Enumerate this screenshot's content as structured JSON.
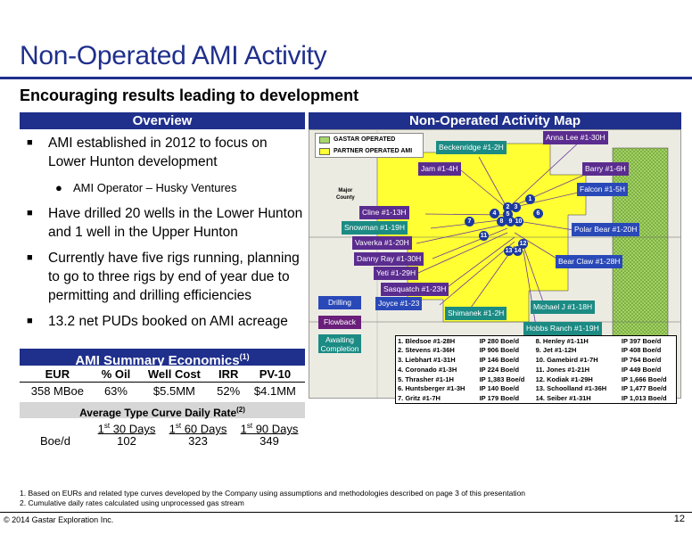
{
  "header": {
    "title": "Non-Operated AMI Activity",
    "subtitle": "Encouraging results leading to development"
  },
  "overview": {
    "heading": "Overview",
    "bullets": [
      "AMI established in 2012 to focus on Lower Hunton development",
      "Have drilled 20 wells in the Lower Hunton and 1 well in the Upper Hunton",
      "Currently have five rigs running, planning to go to three rigs by end of year due to permitting and drilling efficiencies",
      "13.2 net PUDs booked on AMI acreage"
    ],
    "sub_bullet": "AMI Operator – Husky Ventures"
  },
  "summary": {
    "heading": "AMI Summary Economics",
    "heading_sup": "(1)",
    "columns": [
      "EUR",
      "% Oil",
      "Well Cost",
      "IRR",
      "PV-10"
    ],
    "values": [
      "358 MBoe",
      "63%",
      "$5.5MM",
      "52%",
      "$4.1MM"
    ]
  },
  "type_curve": {
    "heading": "Average Type Curve Daily Rate",
    "heading_sup": "(2)",
    "col1_sup": "st",
    "col1_a": "1",
    "col1_b": " 30 Days",
    "col2_a": "1",
    "col2_b": " 60 Days",
    "col3_a": "1",
    "col3_b": " 90 Days",
    "row_label": "Boe/d",
    "values": [
      "102",
      "323",
      "349"
    ]
  },
  "map": {
    "heading": "Non-Operated Activity Map",
    "legend": [
      "GASTAR OPERATED",
      "PARTNER OPERATED AMI"
    ],
    "county_labels": [
      "Major",
      "County"
    ],
    "wells_top": [
      "Anna Lee #1-30H",
      "Beckenridge #1-2H",
      "Jam #1-4H",
      "Barry #1-6H",
      "Falcon #1-5H",
      "Cline #1-13H",
      "Snowman #1-19H",
      "Polar Bear #1-20H",
      "Vaverka #1-20H",
      "Danny Ray #1-30H",
      "Bear Claw #1-28H",
      "Yeti #1-29H",
      "Sasquatch #1-23H",
      "Joyce #1-23",
      "Michael J #1-18H",
      "Shimanek #1-2H",
      "Hobbs Ranch #1-19H"
    ],
    "status": [
      "Drilling",
      "Flowback",
      "Awaiting Completion"
    ],
    "numbers": [
      "1",
      "2",
      "3",
      "4",
      "5",
      "6",
      "7",
      "8",
      "9",
      "10",
      "11",
      "12",
      "13",
      "14"
    ]
  },
  "wells_table": [
    [
      "1. Bledsoe #1-28H",
      "IP 280 Boe/d",
      "8. Henley #1-11H",
      "IP 397 Boe/d"
    ],
    [
      "2. Stevens #1-36H",
      "IP 906 Boe/d",
      "9. Jet #1-12H",
      "IP 408 Boe/d"
    ],
    [
      "3. Liebhart #1-31H",
      "IP 146 Boe/d",
      "10. Gamebird #1-7H",
      "IP 764 Boe/d"
    ],
    [
      "4. Coronado #1-3H",
      "IP 224 Boe/d",
      "11. Jones #1-21H",
      "IP 449 Boe/d"
    ],
    [
      "5. Thrasher #1-1H",
      "IP 1,383 Boe/d",
      "12. Kodiak #1-29H",
      "IP 1,666 Boe/d"
    ],
    [
      "6. Huntsberger #1-3H",
      "IP 140 Boe/d",
      "13. Schoolland #1-36H",
      "IP 1,477 Boe/d"
    ],
    [
      "7. Gritz #1-7H",
      "IP 179 Boe/d",
      "14. Seiber #1-31H",
      "IP 1,013 Boe/d"
    ]
  ],
  "footnotes": [
    "1.   Based on EURs and related type curves developed by the Company using assumptions and methodologies described on page 3 of this presentation",
    "2.   Cumulative daily rates calculated using unprocessed gas stream"
  ],
  "footer": {
    "copyright": "© 2014 Gastar Exploration Inc.",
    "page": "12"
  },
  "colors": {
    "brand": "#1f2f8c",
    "label_purple": "#5b2c8f",
    "label_teal": "#1b8b84",
    "label_blue": "#2a49b8",
    "ami_yellow": "#ffff33",
    "operated_green": "#a6d66a"
  }
}
